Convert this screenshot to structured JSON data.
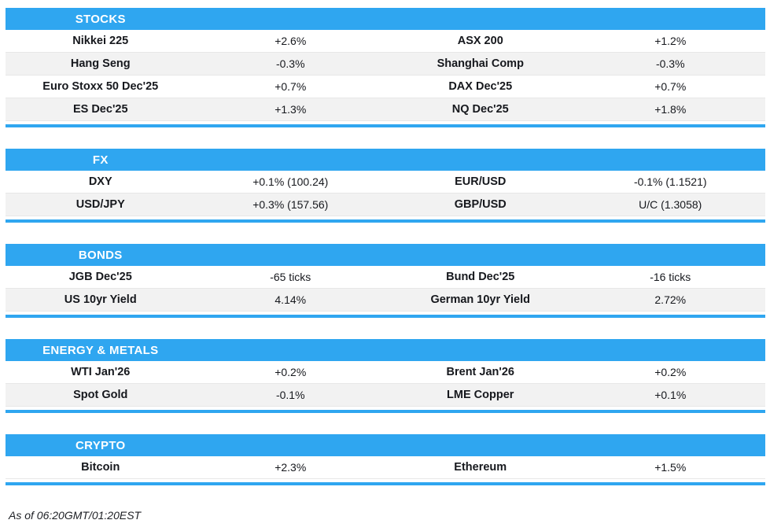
{
  "colors": {
    "accent": "#2fa6f0",
    "alt_row": "#f2f2f2",
    "header_text": "#ffffff",
    "body_text": "#16181d"
  },
  "sections": [
    {
      "title": "STOCKS",
      "rows": [
        [
          "Nikkei 225",
          "+2.6%",
          "ASX 200",
          "+1.2%"
        ],
        [
          "Hang Seng",
          "-0.3%",
          "Shanghai Comp",
          "-0.3%"
        ],
        [
          "Euro Stoxx 50 Dec'25",
          "+0.7%",
          "DAX Dec'25",
          "+0.7%"
        ],
        [
          "ES Dec'25",
          "+1.3%",
          "NQ Dec'25",
          "+1.8%"
        ]
      ]
    },
    {
      "title": "FX",
      "rows": [
        [
          "DXY",
          "+0.1% (100.24)",
          "EUR/USD",
          "-0.1% (1.1521)"
        ],
        [
          "USD/JPY",
          "+0.3% (157.56)",
          "GBP/USD",
          "U/C (1.3058)"
        ]
      ]
    },
    {
      "title": "BONDS",
      "rows": [
        [
          "JGB Dec'25",
          "-65 ticks",
          "Bund Dec'25",
          "-16 ticks"
        ],
        [
          "US 10yr Yield",
          "4.14%",
          "German 10yr Yield",
          "2.72%"
        ]
      ]
    },
    {
      "title": "ENERGY & METALS",
      "rows": [
        [
          "WTI Jan'26",
          "+0.2%",
          "Brent Jan'26",
          "+0.2%"
        ],
        [
          "Spot Gold",
          "-0.1%",
          "LME Copper",
          "+0.1%"
        ]
      ]
    },
    {
      "title": "CRYPTO",
      "rows": [
        [
          "Bitcoin",
          "+2.3%",
          "Ethereum",
          "+1.5%"
        ]
      ]
    }
  ],
  "footer": {
    "as_of": "As of 06:20GMT/01:20EST"
  }
}
